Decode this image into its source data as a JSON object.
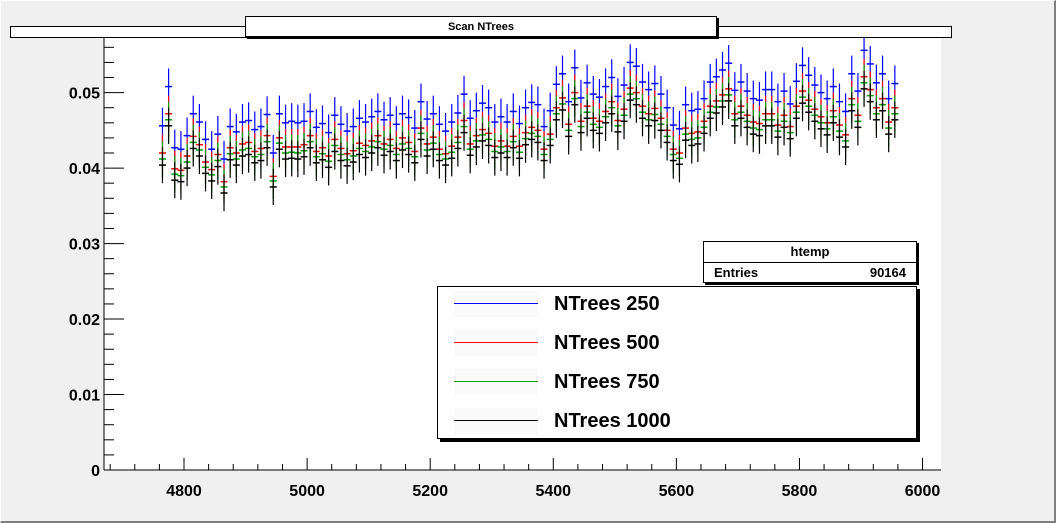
{
  "window": {
    "title": "Scan NTrees"
  },
  "stats": {
    "name": "htemp",
    "entries_label": "Entries",
    "entries_value": "90164"
  },
  "chart_data": {
    "type": "scatter",
    "title": "Scan NTrees",
    "xlabel": "",
    "ylabel": "",
    "xlim": [
      4670,
      6030
    ],
    "ylim": [
      0,
      0.0575
    ],
    "xticks": [
      4800,
      5000,
      5200,
      5400,
      5600,
      5800,
      6000
    ],
    "yticks": [
      0,
      0.01,
      0.02,
      0.03,
      0.04,
      0.05
    ],
    "ytick_labels": [
      "0",
      "0.01",
      "0.02",
      "0.03",
      "0.04",
      "0.05"
    ],
    "grid": false,
    "legend_position": "bottom-right",
    "x": [
      4765,
      4775,
      4785,
      4795,
      4805,
      4815,
      4825,
      4835,
      4845,
      4855,
      4865,
      4875,
      4885,
      4895,
      4905,
      4915,
      4925,
      4935,
      4945,
      4955,
      4965,
      4975,
      4985,
      4995,
      5005,
      5015,
      5025,
      5035,
      5045,
      5055,
      5065,
      5075,
      5085,
      5095,
      5105,
      5115,
      5125,
      5135,
      5145,
      5155,
      5165,
      5175,
      5185,
      5195,
      5205,
      5215,
      5225,
      5235,
      5245,
      5255,
      5265,
      5275,
      5285,
      5295,
      5305,
      5315,
      5325,
      5335,
      5345,
      5355,
      5365,
      5375,
      5385,
      5395,
      5405,
      5415,
      5425,
      5435,
      5445,
      5455,
      5465,
      5475,
      5485,
      5495,
      5505,
      5515,
      5525,
      5535,
      5545,
      5555,
      5565,
      5575,
      5585,
      5595,
      5605,
      5615,
      5625,
      5635,
      5645,
      5655,
      5665,
      5675,
      5685,
      5695,
      5705,
      5715,
      5725,
      5735,
      5745,
      5755,
      5765,
      5775,
      5785,
      5795,
      5805,
      5815,
      5825,
      5835,
      5845,
      5855,
      5865,
      5875,
      5885,
      5895,
      5905,
      5915,
      5925,
      5935,
      5945,
      5955
    ],
    "series": [
      {
        "name": "NTrees 250",
        "color": "#0000ff",
        "values": [
          0.0456,
          0.0508,
          0.0427,
          0.0425,
          0.0443,
          0.0472,
          0.0461,
          0.0438,
          0.0425,
          0.0445,
          0.0412,
          0.0455,
          0.0448,
          0.0461,
          0.0463,
          0.0451,
          0.0455,
          0.0471,
          0.042,
          0.0472,
          0.046,
          0.0462,
          0.046,
          0.0462,
          0.0475,
          0.0454,
          0.0459,
          0.0447,
          0.047,
          0.0458,
          0.0449,
          0.0455,
          0.0466,
          0.0461,
          0.0468,
          0.0475,
          0.0464,
          0.047,
          0.0458,
          0.0472,
          0.0467,
          0.0453,
          0.0488,
          0.0465,
          0.0472,
          0.0458,
          0.0449,
          0.0461,
          0.0473,
          0.0498,
          0.0466,
          0.0476,
          0.0486,
          0.048,
          0.0461,
          0.0468,
          0.0461,
          0.0475,
          0.0459,
          0.048,
          0.0487,
          0.0484,
          0.0455,
          0.0476,
          0.0511,
          0.0525,
          0.0488,
          0.0533,
          0.0493,
          0.0513,
          0.0498,
          0.0494,
          0.0508,
          0.052,
          0.0495,
          0.051,
          0.054,
          0.0535,
          0.0514,
          0.0504,
          0.0512,
          0.0498,
          0.048,
          0.0457,
          0.0452,
          0.0484,
          0.0476,
          0.0478,
          0.0492,
          0.0514,
          0.0521,
          0.053,
          0.0539,
          0.0503,
          0.0514,
          0.0502,
          0.0492,
          0.049,
          0.0504,
          0.0504,
          0.0488,
          0.0502,
          0.0485,
          0.0515,
          0.0536,
          0.0523,
          0.051,
          0.05,
          0.0492,
          0.0508,
          0.0488,
          0.0475,
          0.0525,
          0.0502,
          0.0556,
          0.0538,
          0.0513,
          0.0525,
          0.0492,
          0.0512
        ]
      },
      {
        "name": "NTrees 500",
        "color": "#ff0000",
        "values": [
          0.042,
          0.0472,
          0.0399,
          0.0397,
          0.0416,
          0.0442,
          0.0431,
          0.0408,
          0.0398,
          0.0418,
          0.0382,
          0.0427,
          0.042,
          0.0432,
          0.0434,
          0.0422,
          0.0426,
          0.0443,
          0.0389,
          0.044,
          0.0428,
          0.0428,
          0.0428,
          0.0431,
          0.0443,
          0.0422,
          0.0427,
          0.0416,
          0.0438,
          0.0426,
          0.0419,
          0.0423,
          0.0433,
          0.043,
          0.0436,
          0.0443,
          0.0432,
          0.0438,
          0.0426,
          0.044,
          0.0434,
          0.0422,
          0.0453,
          0.0432,
          0.0441,
          0.0425,
          0.0419,
          0.0429,
          0.0441,
          0.0463,
          0.0432,
          0.0443,
          0.0451,
          0.0446,
          0.0429,
          0.0436,
          0.0429,
          0.0442,
          0.0429,
          0.0447,
          0.0454,
          0.045,
          0.0425,
          0.0445,
          0.048,
          0.0493,
          0.0458,
          0.05,
          0.0462,
          0.0482,
          0.0466,
          0.0462,
          0.0475,
          0.0488,
          0.0463,
          0.0478,
          0.0506,
          0.05,
          0.0482,
          0.0472,
          0.0479,
          0.0466,
          0.045,
          0.0425,
          0.042,
          0.0453,
          0.0446,
          0.0448,
          0.0462,
          0.0482,
          0.0489,
          0.0497,
          0.0505,
          0.0472,
          0.0482,
          0.047,
          0.0461,
          0.0459,
          0.0472,
          0.0472,
          0.0457,
          0.047,
          0.0455,
          0.0482,
          0.0502,
          0.049,
          0.0478,
          0.0468,
          0.046,
          0.0476,
          0.0457,
          0.0444,
          0.0492,
          0.047,
          0.0521,
          0.0504,
          0.048,
          0.0492,
          0.0461,
          0.048
        ]
      },
      {
        "name": "NTrees 750",
        "color": "#00a000",
        "values": [
          0.0412,
          0.0464,
          0.0392,
          0.039,
          0.0408,
          0.0434,
          0.0424,
          0.0401,
          0.0391,
          0.041,
          0.0375,
          0.0419,
          0.0412,
          0.0424,
          0.0426,
          0.0415,
          0.0418,
          0.0435,
          0.0383,
          0.0433,
          0.042,
          0.0421,
          0.042,
          0.0423,
          0.0435,
          0.0415,
          0.0419,
          0.0409,
          0.043,
          0.0418,
          0.0411,
          0.0416,
          0.0426,
          0.0422,
          0.0428,
          0.0435,
          0.0425,
          0.043,
          0.0418,
          0.0432,
          0.0426,
          0.0415,
          0.0446,
          0.0424,
          0.0433,
          0.0418,
          0.0412,
          0.0421,
          0.0434,
          0.0455,
          0.0425,
          0.0436,
          0.0444,
          0.0438,
          0.0422,
          0.0428,
          0.0422,
          0.0435,
          0.0421,
          0.0439,
          0.0446,
          0.0442,
          0.0418,
          0.0438,
          0.0472,
          0.0485,
          0.045,
          0.0492,
          0.0455,
          0.0474,
          0.0458,
          0.0454,
          0.0468,
          0.048,
          0.0456,
          0.047,
          0.0498,
          0.0492,
          0.0474,
          0.0464,
          0.0471,
          0.0458,
          0.0442,
          0.0418,
          0.0413,
          0.0445,
          0.0438,
          0.044,
          0.0454,
          0.0474,
          0.0481,
          0.0489,
          0.0497,
          0.0464,
          0.0474,
          0.0462,
          0.0453,
          0.0451,
          0.0464,
          0.0464,
          0.0449,
          0.0462,
          0.0447,
          0.0474,
          0.0494,
          0.0482,
          0.047,
          0.046,
          0.0452,
          0.0468,
          0.0449,
          0.0436,
          0.0484,
          0.0462,
          0.0513,
          0.0496,
          0.0472,
          0.0484,
          0.0453,
          0.0472
        ]
      },
      {
        "name": "NTrees 1000",
        "color": "#000000",
        "values": [
          0.0404,
          0.0456,
          0.0384,
          0.0382,
          0.04,
          0.0426,
          0.0416,
          0.0393,
          0.0383,
          0.0402,
          0.0367,
          0.0411,
          0.0404,
          0.0416,
          0.0418,
          0.0407,
          0.041,
          0.0427,
          0.0375,
          0.0425,
          0.0412,
          0.0413,
          0.0412,
          0.0415,
          0.0427,
          0.0407,
          0.0411,
          0.0401,
          0.0422,
          0.041,
          0.0403,
          0.0408,
          0.0418,
          0.0414,
          0.042,
          0.0427,
          0.0417,
          0.0422,
          0.041,
          0.0424,
          0.0418,
          0.0407,
          0.0438,
          0.0416,
          0.0425,
          0.041,
          0.0404,
          0.0413,
          0.0426,
          0.0447,
          0.0417,
          0.0428,
          0.0436,
          0.043,
          0.0414,
          0.042,
          0.0414,
          0.0427,
          0.0413,
          0.0431,
          0.0438,
          0.0434,
          0.041,
          0.043,
          0.0464,
          0.0477,
          0.0442,
          0.0484,
          0.0447,
          0.0466,
          0.045,
          0.0446,
          0.046,
          0.0472,
          0.0448,
          0.0462,
          0.049,
          0.0484,
          0.0466,
          0.0456,
          0.0463,
          0.045,
          0.0434,
          0.041,
          0.0405,
          0.0437,
          0.043,
          0.0432,
          0.0446,
          0.0466,
          0.0473,
          0.0481,
          0.0489,
          0.0456,
          0.0466,
          0.0454,
          0.0445,
          0.0443,
          0.0456,
          0.0456,
          0.0441,
          0.0454,
          0.0439,
          0.0466,
          0.0486,
          0.0474,
          0.0462,
          0.0452,
          0.0444,
          0.046,
          0.0441,
          0.0428,
          0.0476,
          0.0454,
          0.0505,
          0.0488,
          0.0464,
          0.0476,
          0.0445,
          0.0464
        ]
      }
    ]
  }
}
